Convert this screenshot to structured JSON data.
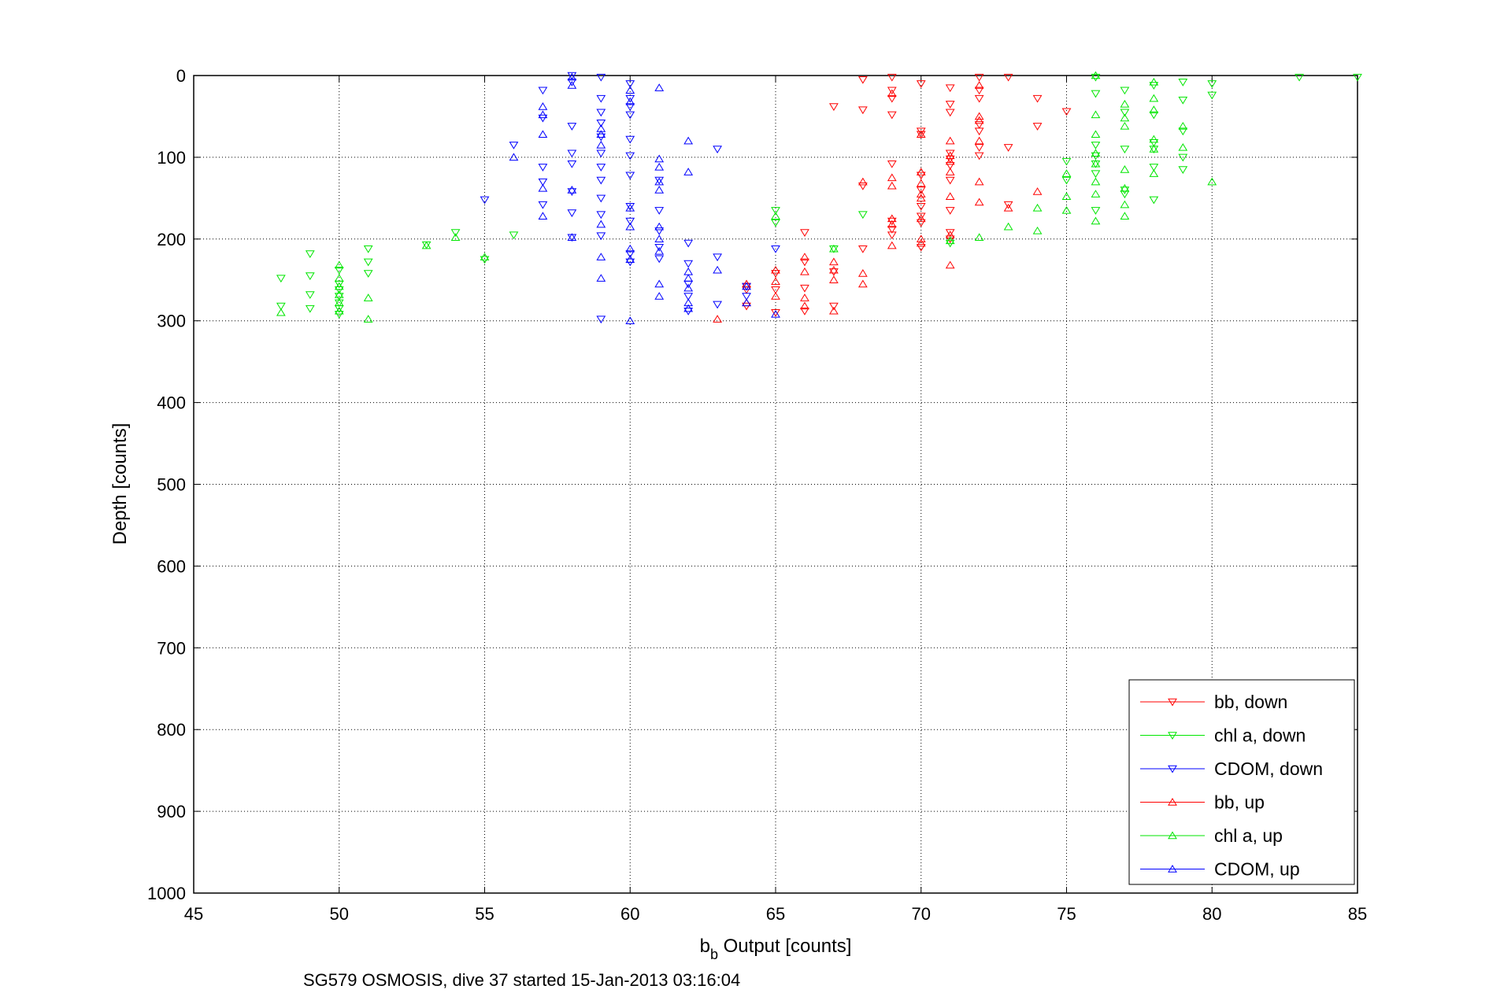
{
  "caption": "SG579 OSMOSIS, dive 37 started 15-Jan-2013 03:16:04",
  "chart_data": {
    "type": "scatter",
    "title": "",
    "xlabel_main": "b",
    "xlabel_sub": "b",
    "xlabel_rest": " Output [counts]",
    "ylabel": "Depth [counts]",
    "xlim": [
      45,
      85
    ],
    "ylim": [
      0,
      1000
    ],
    "y_reversed": true,
    "grid": true,
    "grid_style": "dotted",
    "legend_position": "bottom-right",
    "xticks": [
      45,
      50,
      55,
      60,
      65,
      70,
      75,
      80,
      85
    ],
    "yticks": [
      0,
      100,
      200,
      300,
      400,
      500,
      600,
      700,
      800,
      900,
      1000
    ],
    "series": [
      {
        "name": "bb, down",
        "color": "#ff0000",
        "marker": "triangle-down",
        "points": [
          [
            68,
            5
          ],
          [
            69,
            2
          ],
          [
            69,
            18
          ],
          [
            69,
            28
          ],
          [
            69,
            48
          ],
          [
            68,
            42
          ],
          [
            67,
            38
          ],
          [
            70,
            10
          ],
          [
            70,
            68
          ],
          [
            70,
            72
          ],
          [
            71,
            15
          ],
          [
            71,
            35
          ],
          [
            71,
            45
          ],
          [
            72,
            2
          ],
          [
            72,
            18
          ],
          [
            72,
            28
          ],
          [
            72,
            60
          ],
          [
            72,
            68
          ],
          [
            72,
            88
          ],
          [
            72,
            98
          ],
          [
            73,
            2
          ],
          [
            73,
            88
          ],
          [
            73,
            158
          ],
          [
            74,
            28
          ],
          [
            74,
            62
          ],
          [
            75,
            44
          ],
          [
            71,
            95
          ],
          [
            71,
            102
          ],
          [
            71,
            110
          ],
          [
            71,
            200
          ],
          [
            70,
            122
          ],
          [
            70,
            140
          ],
          [
            70,
            160
          ],
          [
            70,
            172
          ],
          [
            70,
            210
          ],
          [
            69,
            108
          ],
          [
            69,
            178
          ],
          [
            69,
            188
          ],
          [
            68,
            212
          ],
          [
            68,
            135
          ],
          [
            67,
            240
          ],
          [
            67,
            282
          ],
          [
            66,
            192
          ],
          [
            66,
            228
          ],
          [
            66,
            260
          ],
          [
            66,
            288
          ],
          [
            65,
            242
          ],
          [
            65,
            262
          ],
          [
            65,
            290
          ],
          [
            64,
            262
          ],
          [
            64,
            282
          ],
          [
            64,
            258
          ],
          [
            71,
            128
          ],
          [
            71,
            192
          ],
          [
            71,
            165
          ],
          [
            70,
            180
          ],
          [
            69,
            195
          ]
        ]
      },
      {
        "name": "chl a, down",
        "color": "#00e600",
        "marker": "triangle-down",
        "points": [
          [
            48,
            248
          ],
          [
            48,
            282
          ],
          [
            49,
            218
          ],
          [
            49,
            245
          ],
          [
            49,
            268
          ],
          [
            49,
            285
          ],
          [
            50,
            238
          ],
          [
            50,
            255
          ],
          [
            50,
            262
          ],
          [
            50,
            270
          ],
          [
            50,
            278
          ],
          [
            50,
            285
          ],
          [
            50,
            292
          ],
          [
            51,
            212
          ],
          [
            51,
            228
          ],
          [
            51,
            242
          ],
          [
            53,
            207
          ],
          [
            54,
            192
          ],
          [
            55,
            225
          ],
          [
            56,
            195
          ],
          [
            65,
            165
          ],
          [
            65,
            180
          ],
          [
            67,
            212
          ],
          [
            68,
            170
          ],
          [
            75,
            105
          ],
          [
            75,
            128
          ],
          [
            76,
            2
          ],
          [
            76,
            22
          ],
          [
            76,
            85
          ],
          [
            76,
            98
          ],
          [
            76,
            108
          ],
          [
            76,
            120
          ],
          [
            77,
            18
          ],
          [
            77,
            45
          ],
          [
            77,
            90
          ],
          [
            77,
            145
          ],
          [
            78,
            12
          ],
          [
            78,
            48
          ],
          [
            78,
            82
          ],
          [
            78,
            112
          ],
          [
            78,
            152
          ],
          [
            79,
            8
          ],
          [
            79,
            30
          ],
          [
            79,
            68
          ],
          [
            79,
            100
          ],
          [
            79,
            115
          ],
          [
            80,
            10
          ],
          [
            80,
            24
          ],
          [
            83,
            2
          ],
          [
            85,
            2
          ],
          [
            71,
            205
          ],
          [
            76,
            165
          ],
          [
            77,
            140
          ],
          [
            78,
            90
          ]
        ]
      },
      {
        "name": "CDOM, down",
        "color": "#0000ff",
        "marker": "triangle-down",
        "points": [
          [
            57,
            18
          ],
          [
            57,
            52
          ],
          [
            57,
            112
          ],
          [
            57,
            130
          ],
          [
            57,
            158
          ],
          [
            58,
            0
          ],
          [
            58,
            8
          ],
          [
            58,
            62
          ],
          [
            58,
            95
          ],
          [
            58,
            108
          ],
          [
            58,
            142
          ],
          [
            58,
            168
          ],
          [
            58,
            198
          ],
          [
            59,
            2
          ],
          [
            59,
            28
          ],
          [
            59,
            45
          ],
          [
            59,
            58
          ],
          [
            59,
            75
          ],
          [
            59,
            95
          ],
          [
            59,
            112
          ],
          [
            59,
            128
          ],
          [
            59,
            150
          ],
          [
            59,
            170
          ],
          [
            59,
            196
          ],
          [
            59,
            298
          ],
          [
            60,
            10
          ],
          [
            60,
            28
          ],
          [
            60,
            38
          ],
          [
            60,
            48
          ],
          [
            60,
            78
          ],
          [
            60,
            98
          ],
          [
            60,
            122
          ],
          [
            60,
            160
          ],
          [
            60,
            178
          ],
          [
            60,
            218
          ],
          [
            60,
            228
          ],
          [
            61,
            128
          ],
          [
            61,
            165
          ],
          [
            61,
            190
          ],
          [
            61,
            210
          ],
          [
            61,
            224
          ],
          [
            62,
            205
          ],
          [
            62,
            230
          ],
          [
            62,
            255
          ],
          [
            62,
            270
          ],
          [
            62,
            288
          ],
          [
            63,
            90
          ],
          [
            63,
            222
          ],
          [
            63,
            280
          ],
          [
            64,
            258
          ],
          [
            64,
            270
          ],
          [
            65,
            212
          ],
          [
            56,
            85
          ],
          [
            55,
            152
          ]
        ]
      },
      {
        "name": "bb, up",
        "color": "#ff0000",
        "marker": "triangle-up",
        "points": [
          [
            63,
            298
          ],
          [
            64,
            278
          ],
          [
            64,
            255
          ],
          [
            65,
            238
          ],
          [
            65,
            252
          ],
          [
            65,
            270
          ],
          [
            66,
            222
          ],
          [
            66,
            240
          ],
          [
            66,
            272
          ],
          [
            66,
            282
          ],
          [
            67,
            228
          ],
          [
            67,
            238
          ],
          [
            67,
            250
          ],
          [
            67,
            288
          ],
          [
            68,
            130
          ],
          [
            68,
            242
          ],
          [
            68,
            255
          ],
          [
            69,
            125
          ],
          [
            69,
            135
          ],
          [
            69,
            175
          ],
          [
            69,
            182
          ],
          [
            69,
            22
          ],
          [
            70,
            72
          ],
          [
            70,
            118
          ],
          [
            70,
            132
          ],
          [
            70,
            145
          ],
          [
            70,
            150
          ],
          [
            70,
            200
          ],
          [
            70,
            205
          ],
          [
            71,
            80
          ],
          [
            71,
            98
          ],
          [
            71,
            105
          ],
          [
            71,
            118
          ],
          [
            71,
            148
          ],
          [
            71,
            195
          ],
          [
            71,
            232
          ],
          [
            72,
            12
          ],
          [
            72,
            50
          ],
          [
            72,
            55
          ],
          [
            72,
            80
          ],
          [
            72,
            130
          ],
          [
            72,
            155
          ],
          [
            73,
            162
          ],
          [
            74,
            142
          ],
          [
            70,
            175
          ],
          [
            69,
            208
          ]
        ]
      },
      {
        "name": "chl a, up",
        "color": "#00e600",
        "marker": "triangle-up",
        "points": [
          [
            48,
            290
          ],
          [
            50,
            232
          ],
          [
            50,
            248
          ],
          [
            50,
            258
          ],
          [
            50,
            268
          ],
          [
            50,
            278
          ],
          [
            50,
            288
          ],
          [
            51,
            272
          ],
          [
            51,
            298
          ],
          [
            53,
            208
          ],
          [
            54,
            198
          ],
          [
            55,
            222
          ],
          [
            65,
            172
          ],
          [
            67,
            212
          ],
          [
            71,
            202
          ],
          [
            72,
            198
          ],
          [
            73,
            185
          ],
          [
            74,
            162
          ],
          [
            74,
            190
          ],
          [
            75,
            120
          ],
          [
            75,
            148
          ],
          [
            75,
            165
          ],
          [
            76,
            0
          ],
          [
            76,
            48
          ],
          [
            76,
            72
          ],
          [
            76,
            95
          ],
          [
            76,
            108
          ],
          [
            76,
            145
          ],
          [
            76,
            178
          ],
          [
            77,
            35
          ],
          [
            77,
            52
          ],
          [
            77,
            62
          ],
          [
            77,
            138
          ],
          [
            77,
            158
          ],
          [
            77,
            172
          ],
          [
            78,
            8
          ],
          [
            78,
            28
          ],
          [
            78,
            42
          ],
          [
            78,
            78
          ],
          [
            78,
            90
          ],
          [
            78,
            120
          ],
          [
            79,
            62
          ],
          [
            79,
            88
          ],
          [
            80,
            130
          ],
          [
            76,
            130
          ],
          [
            77,
            115
          ]
        ]
      },
      {
        "name": "CDOM, up",
        "color": "#0000ff",
        "marker": "triangle-up",
        "points": [
          [
            56,
            100
          ],
          [
            57,
            38
          ],
          [
            57,
            48
          ],
          [
            57,
            72
          ],
          [
            57,
            138
          ],
          [
            57,
            172
          ],
          [
            58,
            2
          ],
          [
            58,
            12
          ],
          [
            58,
            140
          ],
          [
            58,
            198
          ],
          [
            59,
            65
          ],
          [
            59,
            72
          ],
          [
            59,
            85
          ],
          [
            59,
            182
          ],
          [
            59,
            222
          ],
          [
            59,
            248
          ],
          [
            60,
            18
          ],
          [
            60,
            32
          ],
          [
            60,
            162
          ],
          [
            60,
            185
          ],
          [
            60,
            212
          ],
          [
            60,
            300
          ],
          [
            61,
            15
          ],
          [
            61,
            102
          ],
          [
            61,
            112
          ],
          [
            61,
            130
          ],
          [
            61,
            185
          ],
          [
            61,
            200
          ],
          [
            61,
            215
          ],
          [
            61,
            255
          ],
          [
            61,
            270
          ],
          [
            62,
            80
          ],
          [
            62,
            118
          ],
          [
            62,
            240
          ],
          [
            62,
            248
          ],
          [
            62,
            260
          ],
          [
            62,
            278
          ],
          [
            62,
            285
          ],
          [
            63,
            238
          ],
          [
            64,
            278
          ],
          [
            64,
            258
          ],
          [
            65,
            292
          ],
          [
            61,
            140
          ],
          [
            60,
            225
          ]
        ]
      }
    ]
  }
}
